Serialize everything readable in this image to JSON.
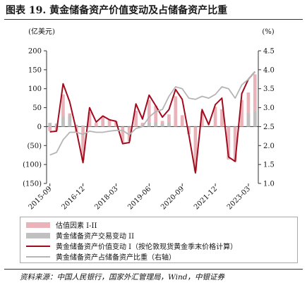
{
  "figure": {
    "title": "图表 19.  黄金储备资产价值变动及占储备资产比重",
    "source": "资料来源：中国人民银行，国家外汇管理局，Wind，中银证券"
  },
  "chart_data": {
    "type": "bar+line",
    "left_axis": {
      "unit": "(亿美元)",
      "min": -150,
      "max": 200,
      "ticks": [
        200,
        150,
        100,
        50,
        0,
        -50,
        -100,
        -150
      ],
      "tick_labels": [
        "200",
        "150",
        "100",
        "50",
        "0",
        "(50)",
        "(100)",
        "(150)"
      ]
    },
    "right_axis": {
      "unit": "(%)",
      "min": 1.0,
      "max": 4.5,
      "ticks": [
        4.5,
        4.0,
        3.5,
        3.0,
        2.5,
        2.0,
        1.5,
        1.0
      ],
      "tick_labels": [
        "4.5",
        "4.0",
        "3.5",
        "3.0",
        "2.5",
        "2.0",
        "1.5",
        "1.0"
      ]
    },
    "x_tick_labels": [
      "2015-09",
      "2016-12",
      "2018-03",
      "2019-06",
      "2020-09",
      "2021-12",
      "2023-03"
    ],
    "x_tick_index": [
      0,
      5,
      10,
      15,
      20,
      25,
      30
    ],
    "periods": [
      "2015-09",
      "2015-12",
      "2016-03",
      "2016-06",
      "2016-09",
      "2016-12",
      "2017-03",
      "2017-06",
      "2017-09",
      "2017-12",
      "2018-03",
      "2018-06",
      "2018-09",
      "2018-12",
      "2019-03",
      "2019-06",
      "2019-09",
      "2019-12",
      "2020-03",
      "2020-06",
      "2020-09",
      "2020-12",
      "2021-03",
      "2021-06",
      "2021-09",
      "2021-12",
      "2022-03",
      "2022-06",
      "2022-09",
      "2022-12",
      "2023-03",
      "2023-06"
    ],
    "grid": false,
    "legend_position": "bottom",
    "series": [
      {
        "name": "估值因素 I-II",
        "kind": "bar",
        "axis": "left",
        "color": "#eab3b9",
        "values": [
          -12,
          -10,
          85,
          35,
          -15,
          -88,
          38,
          10,
          26,
          20,
          14,
          -42,
          -38,
          42,
          10,
          70,
          55,
          15,
          32,
          80,
          30,
          -20,
          -118,
          40,
          0,
          52,
          46,
          -87,
          -93,
          70,
          90,
          138
        ]
      },
      {
        "name": "黄金储备资产交易变动 II",
        "kind": "bar",
        "axis": "left",
        "color": "#c0c0c0",
        "values": [
          10,
          8,
          26,
          28,
          5,
          3,
          0,
          0,
          0,
          0,
          0,
          0,
          0,
          0,
          5,
          10,
          12,
          8,
          10,
          0,
          0,
          0,
          0,
          0,
          0,
          0,
          0,
          0,
          0,
          0,
          35,
          40
        ]
      },
      {
        "name": "黄金储备资产价值变动 I（按伦敦现货黄金季末价格计算）",
        "kind": "line",
        "axis": "left",
        "color": "#a00c1e",
        "values": [
          -14,
          -12,
          113,
          65,
          -10,
          -95,
          50,
          12,
          28,
          18,
          14,
          -45,
          -42,
          60,
          20,
          83,
          55,
          25,
          45,
          98,
          72,
          -22,
          -122,
          45,
          5,
          58,
          75,
          -80,
          -92,
          87,
          125,
          145
        ]
      },
      {
        "name": "黄金储备资产占储备资产比重（右轴）",
        "kind": "line",
        "axis": "right",
        "color": "#b5b5b5",
        "values": [
          1.75,
          1.82,
          2.15,
          2.35,
          2.35,
          2.3,
          2.38,
          2.35,
          2.35,
          2.38,
          2.4,
          2.4,
          2.28,
          2.45,
          2.5,
          2.75,
          2.9,
          2.95,
          3.3,
          3.55,
          3.5,
          3.25,
          3.22,
          3.3,
          3.25,
          3.35,
          3.55,
          3.5,
          3.25,
          3.6,
          3.75,
          3.95
        ]
      }
    ]
  }
}
